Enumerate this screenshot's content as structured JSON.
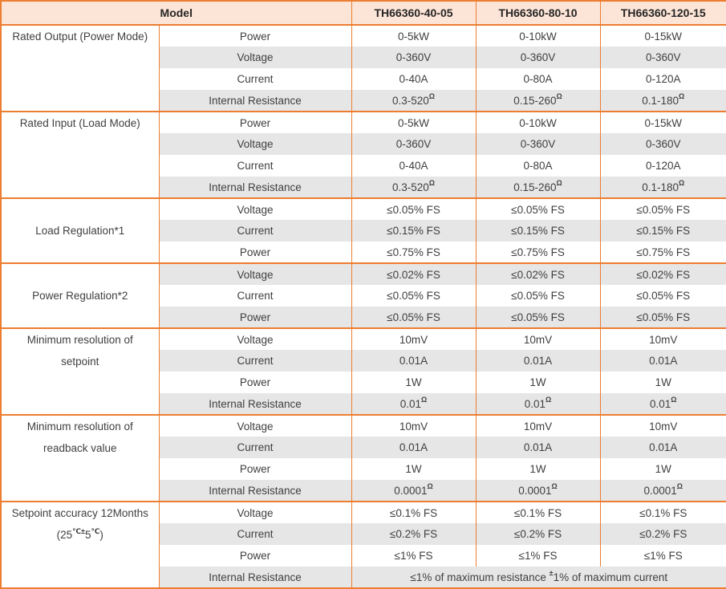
{
  "colors": {
    "border": "#ed7d31",
    "header_bg": "#fce4d6",
    "stripe_bg": "#e7e6e6",
    "text": "#3f3f3f",
    "header_text": "#262626"
  },
  "table": {
    "header": {
      "model_label": "Model",
      "columns": [
        "TH66360-40-05",
        "TH66360-80-10",
        "TH66360-120-15"
      ]
    },
    "groups": [
      {
        "category": [
          [
            "Rated Output (Power Mode)"
          ]
        ],
        "rows": [
          {
            "param": "Power",
            "values": [
              [
                "0-5kW"
              ],
              [
                "0-10kW"
              ],
              [
                "0-15kW"
              ]
            ]
          },
          {
            "param": "Voltage",
            "values": [
              [
                "0-360V"
              ],
              [
                "0-360V"
              ],
              [
                "0-360V"
              ]
            ]
          },
          {
            "param": "Current",
            "values": [
              [
                "0-40A"
              ],
              [
                "0-80A"
              ],
              [
                "0-120A"
              ]
            ]
          },
          {
            "param": "Internal Resistance",
            "values": [
              [
                "0.3-520",
                {
                  "sup": "Ω"
                }
              ],
              [
                "0.15-260",
                {
                  "sup": "Ω"
                }
              ],
              [
                "0.1-180",
                {
                  "sup": "Ω"
                }
              ]
            ]
          }
        ]
      },
      {
        "category": [
          [
            "Rated Input (Load Mode)"
          ]
        ],
        "rows": [
          {
            "param": "Power",
            "values": [
              [
                "0-5kW"
              ],
              [
                "0-10kW"
              ],
              [
                "0-15kW"
              ]
            ]
          },
          {
            "param": "Voltage",
            "values": [
              [
                "0-360V"
              ],
              [
                "0-360V"
              ],
              [
                "0-360V"
              ]
            ]
          },
          {
            "param": "Current",
            "values": [
              [
                "0-40A"
              ],
              [
                "0-80A"
              ],
              [
                "0-120A"
              ]
            ]
          },
          {
            "param": "Internal Resistance",
            "values": [
              [
                "0.3-520",
                {
                  "sup": "Ω"
                }
              ],
              [
                "0.15-260",
                {
                  "sup": "Ω"
                }
              ],
              [
                "0.1-180",
                {
                  "sup": "Ω"
                }
              ]
            ]
          }
        ]
      },
      {
        "category": [
          [
            "Load Regulation*1"
          ]
        ],
        "rows": [
          {
            "param": "Voltage",
            "values": [
              [
                "≤0.05% FS"
              ],
              [
                "≤0.05% FS"
              ],
              [
                "≤0.05% FS"
              ]
            ]
          },
          {
            "param": "Current",
            "values": [
              [
                "≤0.15% FS"
              ],
              [
                "≤0.15% FS"
              ],
              [
                "≤0.15% FS"
              ]
            ]
          },
          {
            "param": "Power",
            "values": [
              [
                "≤0.75% FS"
              ],
              [
                "≤0.75% FS"
              ],
              [
                "≤0.75% FS"
              ]
            ]
          }
        ]
      },
      {
        "category": [
          [
            "Power Regulation*2"
          ]
        ],
        "rows": [
          {
            "param": "Voltage",
            "values": [
              [
                "≤0.02% FS"
              ],
              [
                "≤0.02% FS"
              ],
              [
                "≤0.02% FS"
              ]
            ]
          },
          {
            "param": "Current",
            "values": [
              [
                "≤0.05% FS"
              ],
              [
                "≤0.05% FS"
              ],
              [
                "≤0.05% FS"
              ]
            ]
          },
          {
            "param": "Power",
            "values": [
              [
                "≤0.05% FS"
              ],
              [
                "≤0.05% FS"
              ],
              [
                "≤0.05% FS"
              ]
            ]
          }
        ]
      },
      {
        "category": [
          [
            "Minimum resolution of"
          ],
          [
            "setpoint"
          ]
        ],
        "rows": [
          {
            "param": "Voltage",
            "values": [
              [
                "10mV"
              ],
              [
                "10mV"
              ],
              [
                "10mV"
              ]
            ]
          },
          {
            "param": "Current",
            "values": [
              [
                "0.01A"
              ],
              [
                "0.01A"
              ],
              [
                "0.01A"
              ]
            ]
          },
          {
            "param": "Power",
            "values": [
              [
                "1W"
              ],
              [
                "1W"
              ],
              [
                "1W"
              ]
            ]
          },
          {
            "param": "Internal Resistance",
            "values": [
              [
                "0.01",
                {
                  "sup": "Ω"
                }
              ],
              [
                "0.01",
                {
                  "sup": "Ω"
                }
              ],
              [
                "0.01",
                {
                  "sup": "Ω"
                }
              ]
            ]
          }
        ]
      },
      {
        "category": [
          [
            "Minimum resolution of"
          ],
          [
            "readback value"
          ]
        ],
        "rows": [
          {
            "param": "Voltage",
            "values": [
              [
                "10mV"
              ],
              [
                "10mV"
              ],
              [
                "10mV"
              ]
            ]
          },
          {
            "param": "Current",
            "values": [
              [
                "0.01A"
              ],
              [
                "0.01A"
              ],
              [
                "0.01A"
              ]
            ]
          },
          {
            "param": "Power",
            "values": [
              [
                "1W"
              ],
              [
                "1W"
              ],
              [
                "1W"
              ]
            ]
          },
          {
            "param": "Internal Resistance",
            "values": [
              [
                "0.0001",
                {
                  "sup": "Ω"
                }
              ],
              [
                "0.0001",
                {
                  "sup": "Ω"
                }
              ],
              [
                "0.0001",
                {
                  "sup": "Ω"
                }
              ]
            ]
          }
        ]
      },
      {
        "category": [
          [
            "Setpoint accuracy 12Months"
          ],
          [
            "(25",
            {
              "sup": "℃±"
            },
            "5",
            {
              "sup": "℃"
            },
            ")"
          ]
        ],
        "rows": [
          {
            "param": "Voltage",
            "values": [
              [
                "≤0.1% FS"
              ],
              [
                "≤0.1% FS"
              ],
              [
                "≤0.1% FS"
              ]
            ]
          },
          {
            "param": "Current",
            "values": [
              [
                "≤0.2% FS"
              ],
              [
                "≤0.2% FS"
              ],
              [
                "≤0.2% FS"
              ]
            ]
          },
          {
            "param": "Power",
            "values": [
              [
                "≤1% FS"
              ],
              [
                "≤1% FS"
              ],
              [
                "≤1% FS"
              ]
            ]
          },
          {
            "param": "Internal Resistance",
            "merged": [
              "≤1% of maximum resistance ",
              {
                "sup": "±"
              },
              "1% of maximum current"
            ]
          }
        ]
      }
    ]
  }
}
